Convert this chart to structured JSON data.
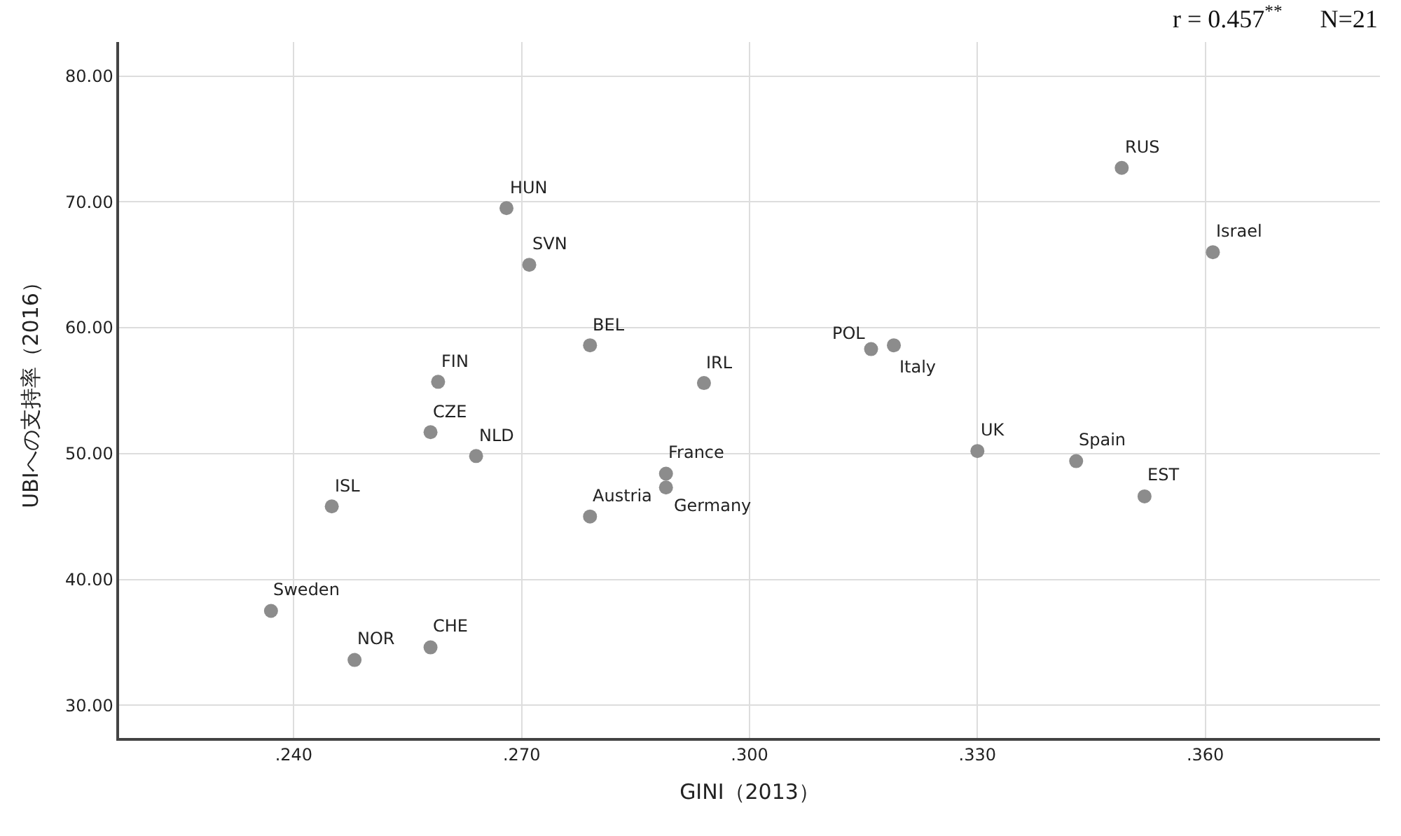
{
  "chart_data": {
    "type": "scatter",
    "xlabel": "GINI（2013）",
    "ylabel": "UBIへの支持率（2016）",
    "x": [
      0.268,
      0.271,
      0.279,
      0.259,
      0.294,
      0.258,
      0.264,
      0.289,
      0.289,
      0.279,
      0.245,
      0.237,
      0.248,
      0.258,
      0.349,
      0.361,
      0.316,
      0.319,
      0.33,
      0.343,
      0.352
    ],
    "series": [
      {
        "color": "#8c8c8c",
        "values": [
          69.5,
          65.0,
          58.6,
          55.7,
          55.6,
          51.7,
          49.8,
          48.4,
          47.3,
          45.0,
          45.8,
          37.5,
          33.6,
          34.6,
          72.7,
          66.0,
          58.3,
          58.6,
          50.2,
          49.4,
          46.6
        ]
      }
    ],
    "xlim": [
      0.217,
      0.383
    ],
    "ylim": [
      27.4,
      82.7
    ],
    "xticks": [
      {
        "value": 0.24,
        "label": ".240"
      },
      {
        "value": 0.27,
        "label": ".270"
      },
      {
        "value": 0.3,
        "label": ".300"
      },
      {
        "value": 0.33,
        "label": ".330"
      },
      {
        "value": 0.36,
        "label": ".360"
      }
    ],
    "yticks": [
      {
        "value": 30,
        "label": "30.00"
      },
      {
        "value": 40,
        "label": "40.00"
      },
      {
        "value": 50,
        "label": "50.00"
      },
      {
        "value": 60,
        "label": "60.00"
      },
      {
        "value": 70,
        "label": "70.00"
      },
      {
        "value": 80,
        "label": "80.00"
      }
    ],
    "grid": true,
    "marker": "circle",
    "annotations": [
      {
        "text": "HUN",
        "x": 0.268,
        "y": 69.5
      },
      {
        "text": "SVN",
        "x": 0.271,
        "y": 65.0
      },
      {
        "text": "BEL",
        "x": 0.279,
        "y": 58.6
      },
      {
        "text": "FIN",
        "x": 0.259,
        "y": 55.7
      },
      {
        "text": "IRL",
        "x": 0.294,
        "y": 55.6
      },
      {
        "text": "CZE",
        "x": 0.258,
        "y": 51.7
      },
      {
        "text": "NLD",
        "x": 0.264,
        "y": 49.8
      },
      {
        "text": "France",
        "x": 0.289,
        "y": 48.4
      },
      {
        "text": "Germany",
        "x": 0.289,
        "y": 47.3
      },
      {
        "text": "Austria",
        "x": 0.279,
        "y": 45.0
      },
      {
        "text": "ISL",
        "x": 0.245,
        "y": 45.8
      },
      {
        "text": "Sweden",
        "x": 0.237,
        "y": 37.5
      },
      {
        "text": "NOR",
        "x": 0.248,
        "y": 33.6
      },
      {
        "text": "CHE",
        "x": 0.258,
        "y": 34.6
      },
      {
        "text": "RUS",
        "x": 0.349,
        "y": 72.7
      },
      {
        "text": "Israel",
        "x": 0.361,
        "y": 66.0
      },
      {
        "text": "POL",
        "x": 0.316,
        "y": 58.3
      },
      {
        "text": "Italy",
        "x": 0.319,
        "y": 58.6
      },
      {
        "text": "UK",
        "x": 0.33,
        "y": 50.2
      },
      {
        "text": "Spain",
        "x": 0.343,
        "y": 49.4
      },
      {
        "text": "EST",
        "x": 0.352,
        "y": 46.6
      },
      "r = 0.457$^{**}$      N=21"
    ]
  }
}
